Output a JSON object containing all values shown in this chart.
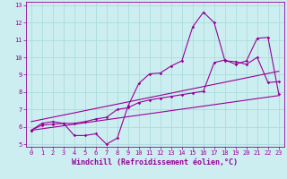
{
  "xlabel": "Windchill (Refroidissement éolien,°C)",
  "background_color": "#cceef0",
  "grid_color": "#aadddd",
  "line_color": "#990099",
  "xmin": 0,
  "xmax": 23,
  "ymin": 5,
  "ymax": 13,
  "series1_x": [
    0,
    1,
    2,
    3,
    4,
    5,
    6,
    7,
    8,
    9,
    10,
    11,
    12,
    13,
    14,
    15,
    16,
    17,
    18,
    19,
    20,
    21,
    22,
    23
  ],
  "series1_y": [
    5.8,
    6.2,
    6.3,
    6.2,
    5.5,
    5.5,
    5.6,
    5.0,
    5.35,
    7.2,
    8.5,
    9.05,
    9.1,
    9.5,
    9.8,
    11.75,
    12.6,
    12.0,
    9.8,
    9.75,
    9.6,
    10.0,
    8.55,
    8.6
  ],
  "series2_x": [
    0,
    23
  ],
  "series2_y": [
    5.8,
    7.8
  ],
  "series3_x": [
    0,
    23
  ],
  "series3_y": [
    6.3,
    9.2
  ],
  "series4_x": [
    0,
    1,
    2,
    3,
    4,
    5,
    6,
    7,
    8,
    9,
    10,
    11,
    12,
    13,
    14,
    15,
    16,
    17,
    18,
    19,
    20,
    21,
    22,
    23
  ],
  "series4_y": [
    5.8,
    6.1,
    6.15,
    6.2,
    6.2,
    6.3,
    6.45,
    6.55,
    7.0,
    7.1,
    7.4,
    7.55,
    7.65,
    7.75,
    7.85,
    7.95,
    8.05,
    9.7,
    9.85,
    9.6,
    9.8,
    11.1,
    11.15,
    7.9
  ],
  "xticks": [
    0,
    1,
    2,
    3,
    4,
    5,
    6,
    7,
    8,
    9,
    10,
    11,
    12,
    13,
    14,
    15,
    16,
    17,
    18,
    19,
    20,
    21,
    22,
    23
  ],
  "yticks": [
    5,
    6,
    7,
    8,
    9,
    10,
    11,
    12,
    13
  ],
  "tick_fontsize": 5.0,
  "xlabel_fontsize": 6.0
}
